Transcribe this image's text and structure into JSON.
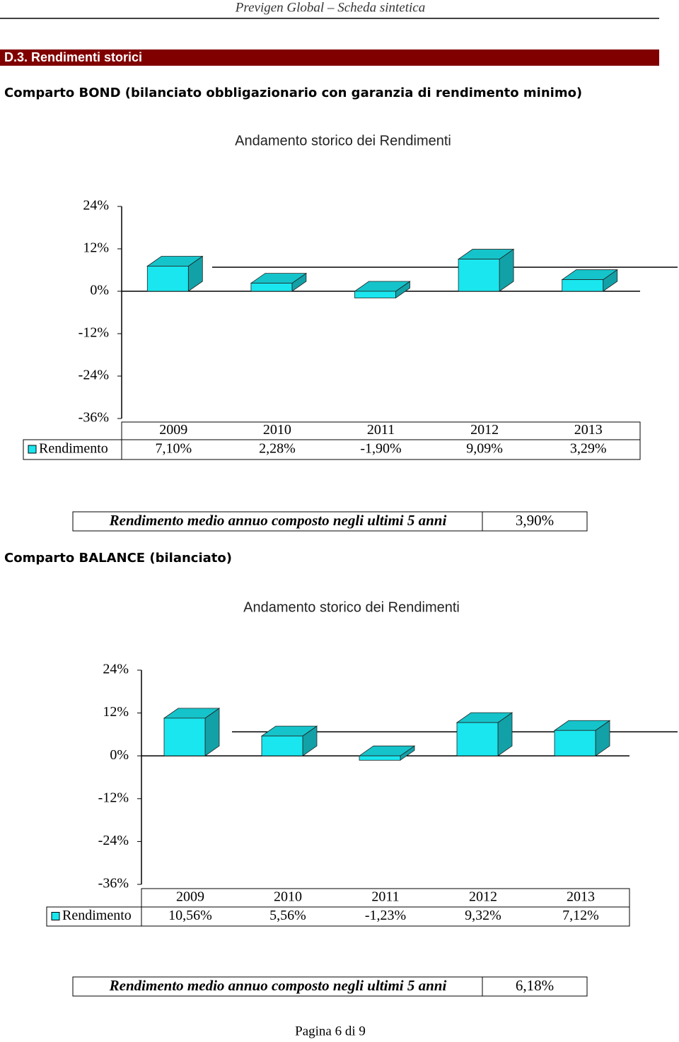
{
  "header": {
    "title": "Previgen Global – Scheda sintetica"
  },
  "section": {
    "title": "D.3. Rendimenti storici"
  },
  "comparti": [
    {
      "heading": "Comparto BOND (bilanciato obbligazionario con garanzia di rendimento minimo)",
      "summary": {
        "label": "Rendimento medio annuo composto negli ultimi 5 anni",
        "value": "3,90%"
      }
    },
    {
      "heading": "Comparto BALANCE (bilanciato)",
      "summary": {
        "label": "Rendimento medio annuo composto negli ultimi 5 anni",
        "value": "6,18%"
      }
    }
  ],
  "chart_data": [
    {
      "type": "bar",
      "title": "Andamento storico dei Rendimenti",
      "categories": [
        "2009",
        "2010",
        "2011",
        "2012",
        "2013"
      ],
      "series": [
        {
          "name": "Rendimento",
          "color": "#19E6EE",
          "values": [
            7.1,
            2.28,
            -1.9,
            9.09,
            3.29
          ],
          "value_labels": [
            "7,10%",
            "2,28%",
            "-1,90%",
            "9,09%",
            "3,29%"
          ]
        }
      ],
      "ylim": [
        -36,
        24
      ],
      "yticks": [
        {
          "value": -36,
          "label": "-36%"
        },
        {
          "value": -24,
          "label": "-24%"
        },
        {
          "value": -12,
          "label": "-12%"
        },
        {
          "value": 0,
          "label": "0%"
        },
        {
          "value": 12,
          "label": "12%"
        },
        {
          "value": 24,
          "label": "24%"
        }
      ],
      "grid": false
    },
    {
      "type": "bar",
      "title": "Andamento storico dei Rendimenti",
      "categories": [
        "2009",
        "2010",
        "2011",
        "2012",
        "2013"
      ],
      "series": [
        {
          "name": "Rendimento",
          "color": "#19E6EE",
          "values": [
            10.56,
            5.56,
            -1.23,
            9.32,
            7.12
          ],
          "value_labels": [
            "10,56%",
            "5,56%",
            "-1,23%",
            "9,32%",
            "7,12%"
          ]
        }
      ],
      "ylim": [
        -36,
        24
      ],
      "yticks": [
        {
          "value": -36,
          "label": "-36%"
        },
        {
          "value": -24,
          "label": "-24%"
        },
        {
          "value": -12,
          "label": "-12%"
        },
        {
          "value": 0,
          "label": "0%"
        },
        {
          "value": 12,
          "label": "12%"
        },
        {
          "value": 24,
          "label": "24%"
        }
      ],
      "grid": false
    }
  ],
  "footer": {
    "page": "Pagina 6 di 9"
  }
}
